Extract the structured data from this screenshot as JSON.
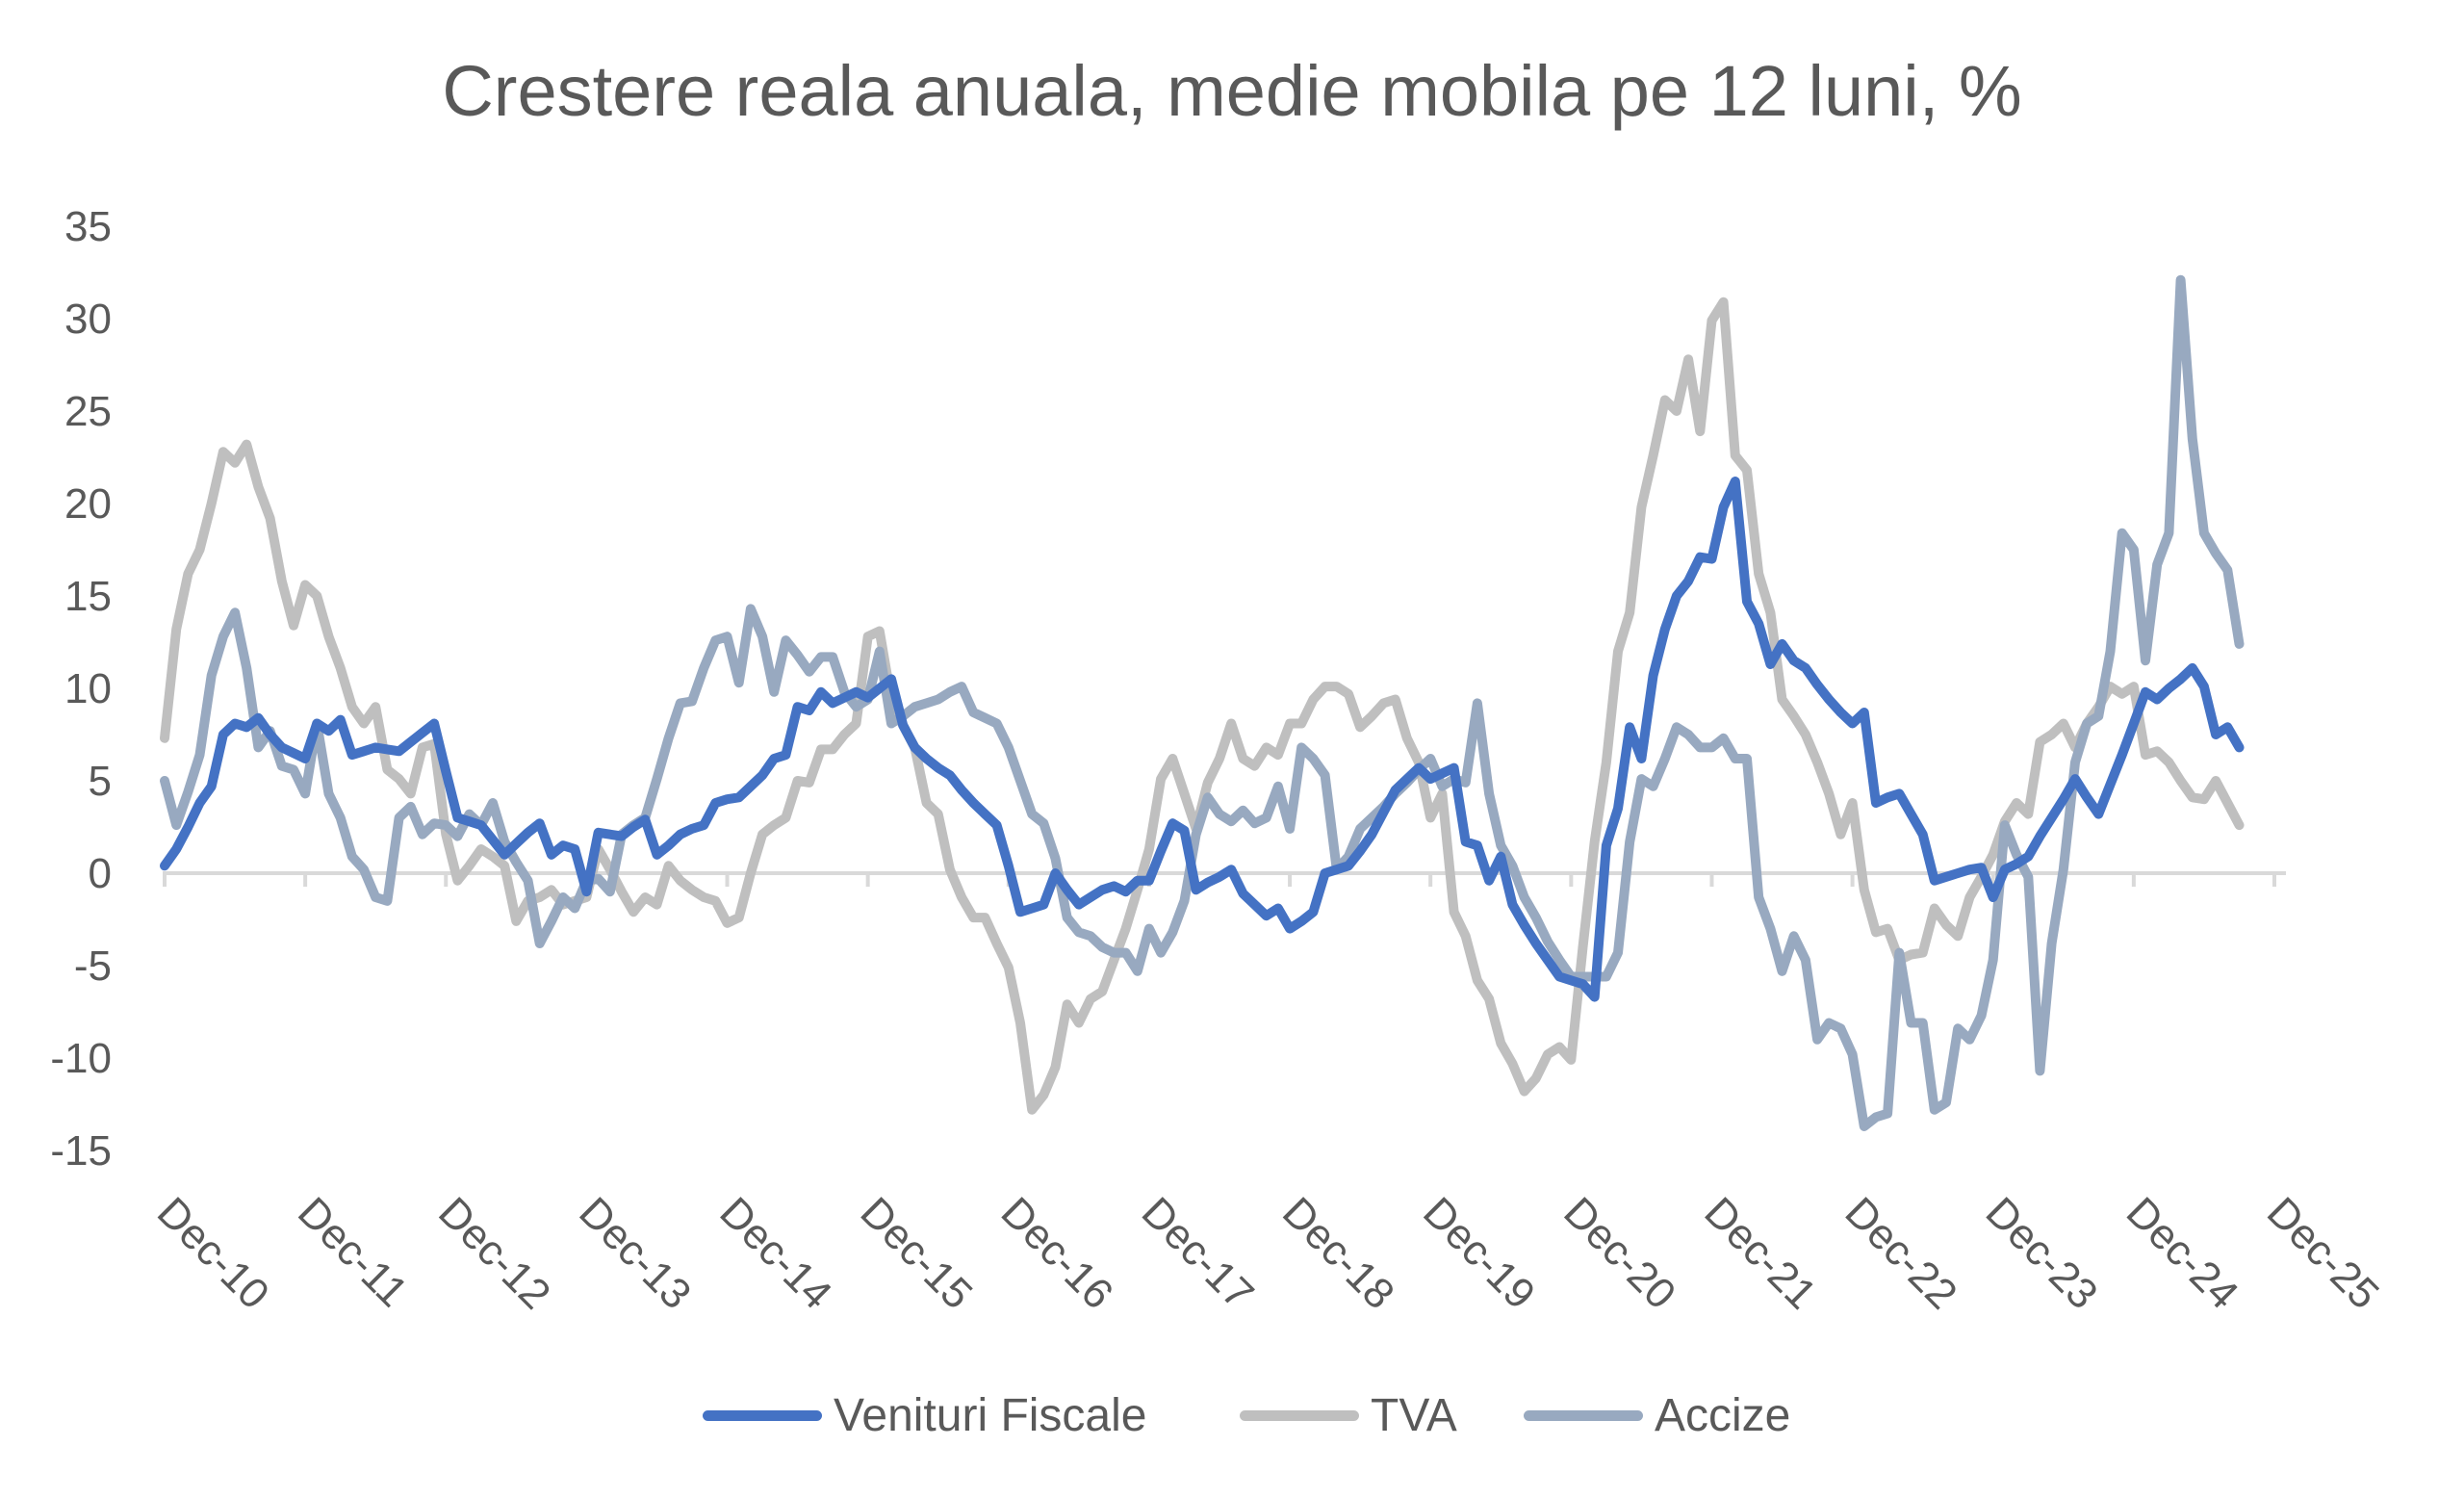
{
  "chart_data": {
    "type": "line",
    "title": "Crestere reala anuala, medie mobila pe 12 luni, %",
    "xlabel": "",
    "ylabel": "",
    "x_start": "Dec-10",
    "frequency": "monthly",
    "x_tick_labels": [
      "Dec-10",
      "Dec-11",
      "Dec-12",
      "Dec-13",
      "Dec-14",
      "Dec-15",
      "Dec-16",
      "Dec-17",
      "Dec-18",
      "Dec-19",
      "Dec-20",
      "Dec-21",
      "Dec-22",
      "Dec-23",
      "Dec-24",
      "Dec-25"
    ],
    "y_tick_labels": [
      "35",
      "30",
      "25",
      "20",
      "15",
      "10",
      "5",
      "0",
      "-5",
      "-10",
      "-15"
    ],
    "ylim": [
      -15,
      35
    ],
    "grid": false,
    "legend_position": "bottom",
    "series": [
      {
        "name": "Venituri Fiscale",
        "color": "#4472C4",
        "values": [
          0.4,
          1.3,
          2.5,
          3.8,
          4.7,
          7.5,
          8.1,
          7.9,
          8.4,
          7.5,
          6.8,
          6.5,
          6.2,
          8.1,
          7.7,
          8.3,
          6.4,
          6.6,
          6.8,
          6.7,
          6.6,
          7.1,
          7.6,
          8.1,
          5.5,
          3,
          2.8,
          2.6,
          1.8,
          1,
          1.6,
          2.2,
          2.7,
          1,
          1.5,
          1.3,
          -1,
          2.2,
          2.1,
          2,
          2.5,
          2.9,
          1,
          1.5,
          2.1,
          2.4,
          2.6,
          3.8,
          4,
          4.1,
          4.7,
          5.3,
          6.2,
          6.4,
          9,
          8.8,
          9.8,
          9.2,
          9.5,
          9.8,
          9.5,
          10,
          10.5,
          8,
          6.8,
          6.2,
          5.7,
          5.3,
          4.5,
          3.8,
          3.2,
          2.6,
          0.4,
          -2.1,
          -1.9,
          -1.7,
          0,
          -0.9,
          -1.7,
          -1.3,
          -0.9,
          -0.7,
          -1,
          -0.4,
          -0.4,
          1.2,
          2.7,
          2.3,
          -0.9,
          -0.5,
          -0.2,
          0.2,
          -1.1,
          -1.7,
          -2.3,
          -1.9,
          -3,
          -2.6,
          -2.1,
          0,
          0.2,
          0.4,
          1.2,
          2.1,
          3.3,
          4.5,
          5.1,
          5.7,
          5.1,
          5.4,
          5.7,
          1.7,
          1.5,
          -0.4,
          0.9,
          -1.7,
          -2.8,
          -3.8,
          -4.7,
          -5.6,
          -5.8,
          -6,
          -6.7,
          1.5,
          3.5,
          7.9,
          6.2,
          10.7,
          13.2,
          15,
          15.8,
          17.1,
          17,
          19.8,
          21.2,
          14.7,
          13.5,
          11.3,
          12.4,
          11.5,
          11.1,
          10.2,
          9.4,
          8.7,
          8.1,
          8.7,
          3.8,
          4.1,
          4.3,
          3.2,
          2.1,
          -0.4,
          -0.2,
          0,
          0.2,
          0.3,
          -1.3,
          0.2,
          0.5,
          0.9,
          2,
          3,
          4,
          5.1,
          4.1,
          3.2,
          4.8,
          6.4,
          8.1,
          9.8,
          9.4,
          10,
          10.5,
          11.1,
          10.1,
          7.5,
          7.9,
          6.8
        ]
      },
      {
        "name": "TVA",
        "color": "#BFBFBF",
        "values": [
          7.3,
          13.2,
          16.2,
          17.5,
          20,
          22.8,
          22.2,
          23.2,
          20.9,
          19.2,
          15.8,
          13.4,
          15.6,
          15,
          12.8,
          11.1,
          9,
          8.1,
          9,
          5.6,
          5.1,
          4.3,
          6.8,
          7,
          2.1,
          -0.4,
          0.4,
          1.3,
          0.9,
          0.4,
          -2.6,
          -1.5,
          -1.3,
          -0.9,
          -1.7,
          -1.5,
          -1.3,
          1.3,
          0.2,
          -1,
          -2.1,
          -1.3,
          -1.7,
          0.4,
          -0.4,
          -0.9,
          -1.3,
          -1.5,
          -2.7,
          -2.4,
          0,
          2.1,
          2.6,
          3,
          5,
          4.9,
          6.7,
          6.7,
          7.5,
          8.1,
          12.8,
          13.1,
          9.4,
          8,
          6.8,
          3.8,
          3.2,
          0.2,
          -1.3,
          -2.4,
          -2.4,
          -3.8,
          -5.1,
          -8.1,
          -12.8,
          -12,
          -10.5,
          -7.1,
          -8.1,
          -6.8,
          -6.4,
          -4.7,
          -3,
          -0.9,
          1.3,
          5.1,
          6.2,
          4.3,
          2.4,
          4.9,
          6.2,
          8.1,
          6.2,
          5.8,
          6.8,
          6.4,
          8.1,
          8.1,
          9.4,
          10.1,
          10.1,
          9.7,
          7.9,
          8.5,
          9.2,
          9.4,
          7.3,
          6,
          3,
          4.3,
          -2.1,
          -3.4,
          -5.8,
          -6.8,
          -9.2,
          -10.3,
          -11.8,
          -11.1,
          -9.8,
          -9.4,
          -10.1,
          -4,
          1.7,
          6,
          12,
          14.1,
          19.8,
          22.6,
          25.6,
          25,
          27.8,
          23.9,
          29.9,
          30.9,
          22.6,
          21.8,
          16.2,
          14.1,
          9.4,
          8.5,
          7.5,
          6,
          4.3,
          2.1,
          3.8,
          -0.9,
          -3.2,
          -3,
          -4.7,
          -4.4,
          -4.3,
          -1.9,
          -2.8,
          -3.4,
          -1.3,
          -0.2,
          1,
          2.8,
          3.8,
          3.2,
          7.1,
          7.5,
          8.1,
          6.8,
          8.1,
          9,
          10.1,
          9.7,
          10.1,
          6.4,
          6.6,
          6,
          5,
          4.1,
          4,
          5,
          3.8,
          2.6
        ]
      },
      {
        "name": "Accize",
        "color": "#98A9C0",
        "values": [
          5,
          2.6,
          4.4,
          6.4,
          10.7,
          12.8,
          14.1,
          11.1,
          6.8,
          7.7,
          5.8,
          5.6,
          4.3,
          8.1,
          4.3,
          3,
          0.9,
          0.2,
          -1.3,
          -1.5,
          3,
          3.6,
          2.1,
          2.7,
          2.6,
          2,
          3.2,
          2.6,
          3.8,
          1.7,
          0.6,
          -0.4,
          -3.8,
          -2.6,
          -1.3,
          -1.9,
          -0.4,
          -0.3,
          -1,
          2.1,
          2.6,
          3,
          5.1,
          7.3,
          9.2,
          9.3,
          11.1,
          12.6,
          12.8,
          10.3,
          14.3,
          12.8,
          9.8,
          12.6,
          11.8,
          10.9,
          11.7,
          11.7,
          9.8,
          9,
          9.4,
          12,
          8.1,
          8.5,
          9,
          9.2,
          9.4,
          9.8,
          10.1,
          8.7,
          8.4,
          8.1,
          6.8,
          5,
          3.2,
          2.7,
          0.8,
          -2.4,
          -3.2,
          -3.4,
          -4,
          -4.3,
          -4.3,
          -5.3,
          -3,
          -4.3,
          -3.2,
          -1.5,
          2.1,
          4.1,
          3.2,
          2.8,
          3.4,
          2.7,
          3,
          4.7,
          2.4,
          6.8,
          6.2,
          5.3,
          0.2,
          0.9,
          2.4,
          3,
          3.6,
          4.3,
          4.9,
          5.6,
          6.2,
          4.7,
          5.1,
          4.9,
          9.2,
          4.3,
          1.5,
          0.4,
          -1.3,
          -2.4,
          -3.7,
          -4.7,
          -5.6,
          -5.6,
          -5.6,
          -5.6,
          -4.3,
          1.7,
          5.1,
          4.7,
          6.2,
          7.9,
          7.5,
          6.8,
          6.8,
          7.3,
          6.2,
          6.2,
          -1.3,
          -3,
          -5.3,
          -3.4,
          -4.7,
          -9,
          -8.1,
          -8.4,
          -9.8,
          -13.7,
          -13.2,
          -13,
          -4.3,
          -8.1,
          -8.1,
          -12.8,
          -12.4,
          -8.4,
          -9,
          -7.7,
          -4.7,
          2.6,
          1,
          -0.2,
          -10.7,
          -3.8,
          0.2,
          6,
          8.1,
          8.5,
          12,
          18.4,
          17.5,
          11.5,
          16.7,
          18.4,
          32.1,
          23.5,
          18.4,
          17.3,
          16.4,
          12.4
        ]
      }
    ]
  }
}
